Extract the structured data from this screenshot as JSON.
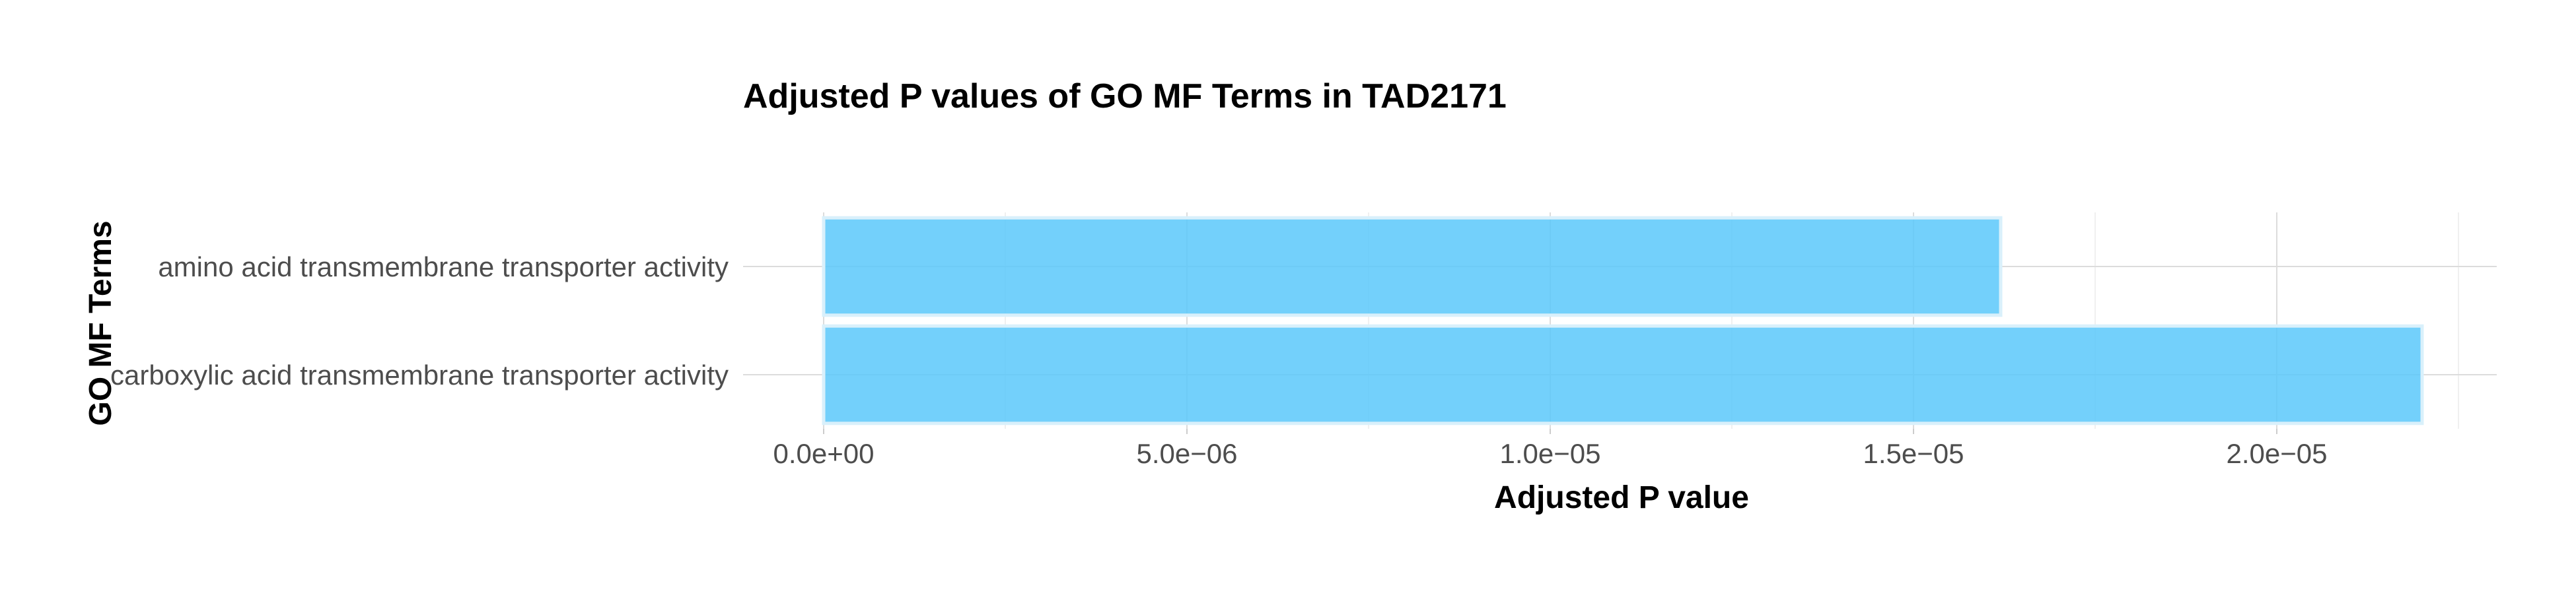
{
  "chart_data": {
    "type": "bar",
    "orientation": "horizontal",
    "title": "Adjusted P values of GO MF Terms in TAD2171",
    "xlabel": "Adjusted P value",
    "ylabel": "GO MF Terms",
    "categories": [
      "amino acid transmembrane transporter activity",
      "carboxylic acid transmembrane transporter activity"
    ],
    "values": [
      1.62e-05,
      2.2e-05
    ],
    "xlim": [
      0,
      2.25e-05
    ],
    "x_ticks": [
      0,
      5e-06,
      1e-05,
      1.5e-05,
      2e-05
    ],
    "x_tick_labels": [
      "0.0e+00",
      "5.0e−06",
      "1.0e−05",
      "1.5e−05",
      "2.0e−05"
    ],
    "grid": true,
    "legend": "none",
    "bar_color": "#5ac8fa"
  }
}
